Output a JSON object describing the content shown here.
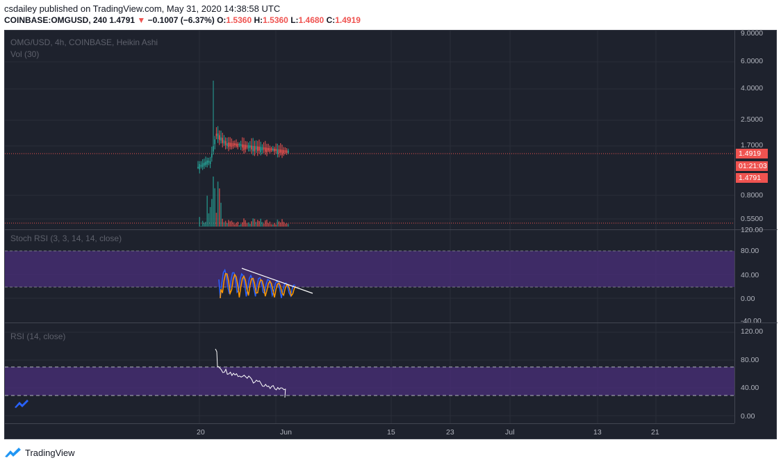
{
  "header": {
    "publisher_line": "csdailey published on TradingView.com, May 31, 2020 14:38:58 UTC",
    "symbol": "COINBASE:OMGUSD, 240",
    "last": "1.4791",
    "change": "−0.1007 (−6.37%)",
    "o_label": "O:",
    "o_val": "1.5360",
    "h_label": "H:",
    "h_val": "1.5360",
    "l_label": "L:",
    "l_val": "1.4680",
    "c_label": "C:",
    "c_val": "1.4919"
  },
  "main_pane": {
    "title": "OMG/USD, 4h, COINBASE, Heikin Ashi",
    "volume_label": "Vol (30)",
    "price_axis": [
      "9.0000",
      "6.0000",
      "4.0000",
      "2.5000",
      "1.7000",
      "0.8000",
      "0.5500"
    ],
    "price_tags": [
      "1.4919",
      "01:21:03",
      "1.4791"
    ],
    "scale": "log"
  },
  "stoch_pane": {
    "title": "Stoch RSI (3, 3, 14, 14, close)",
    "axis": [
      "120.00",
      "80.00",
      "40.00",
      "0.00",
      "-40.00"
    ]
  },
  "rsi_pane": {
    "title": "RSI (14, close)",
    "axis": [
      "120.00",
      "80.00",
      "40.00",
      "0.00"
    ]
  },
  "time_axis": [
    "20",
    "Jun",
    "15",
    "23",
    "Jul",
    "13",
    "21"
  ],
  "footer": {
    "brand": "TradingView"
  },
  "colors": {
    "background": "#1e222d",
    "up": "#26a69a",
    "down": "#ef5350",
    "band": "#4a2f7a",
    "stoch_k": "#2962ff",
    "stoch_d": "#ff9800",
    "rsi": "#ffffff"
  }
}
